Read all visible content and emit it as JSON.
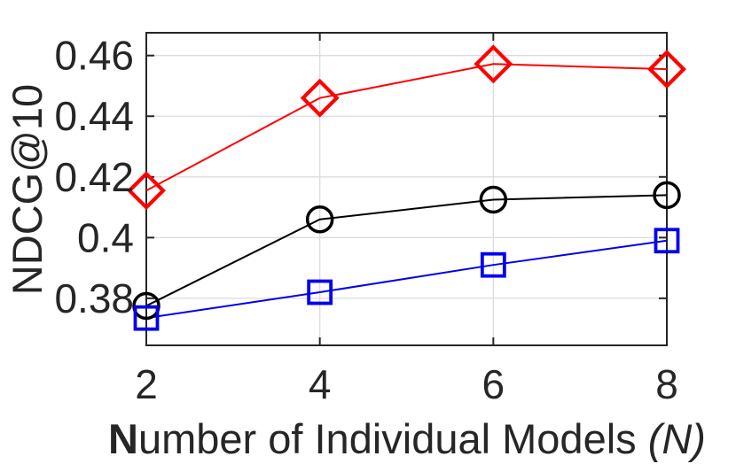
{
  "chart_data": {
    "type": "line",
    "title": "",
    "ylabel": "NDCG@10",
    "xlabel_parts": [
      {
        "text": "N",
        "style": "bold"
      },
      {
        "text": "umber of Individual Models ",
        "style": "normal"
      },
      {
        "text": "(N)",
        "style": "italic"
      }
    ],
    "x": [
      2,
      4,
      6,
      8
    ],
    "xtick_labels": [
      "2",
      "4",
      "6",
      "8"
    ],
    "yticks": [
      0.38,
      0.4,
      0.42,
      0.44,
      0.46
    ],
    "ytick_labels": [
      "0.38",
      "0.4",
      "0.42",
      "0.44",
      "0.46"
    ],
    "xlim": [
      2,
      8
    ],
    "ylim": [
      0.3645,
      0.4675
    ],
    "grid": true,
    "legend": null,
    "series": [
      {
        "name": "red-diamond-series",
        "marker": "diamond",
        "color": "#ff0000",
        "values": [
          0.4155,
          0.446,
          0.4572,
          0.4555
        ]
      },
      {
        "name": "black-circle-series",
        "marker": "circle",
        "color": "#000000",
        "values": [
          0.3775,
          0.406,
          0.4125,
          0.414
        ]
      },
      {
        "name": "blue-square-series",
        "marker": "square",
        "color": "#0000ee",
        "values": [
          0.3735,
          0.382,
          0.391,
          0.399
        ]
      }
    ],
    "axis_color": "#262626",
    "grid_color": "#dcdcdc",
    "background_color": "#ffffff"
  }
}
